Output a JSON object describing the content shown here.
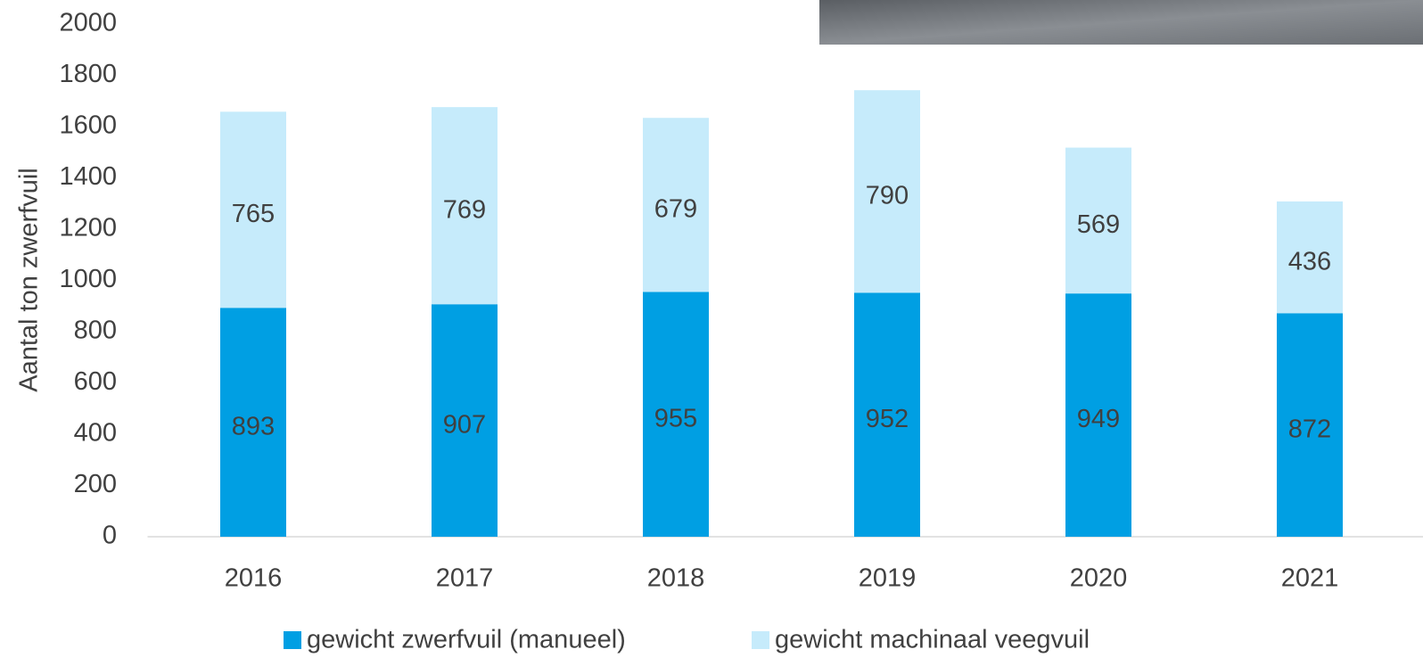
{
  "chart_data": {
    "type": "stacked_bar",
    "y_label": "Aantal ton zwerfvuil",
    "categories": [
      "2016",
      "2017",
      "2018",
      "2019",
      "2020",
      "2021"
    ],
    "series": [
      {
        "name": "gewicht zwerfvuil (manueel)",
        "color": "#009fe3",
        "values": [
          893,
          907,
          955,
          952,
          949,
          872
        ]
      },
      {
        "name": "gewicht machinaal veegvuil",
        "color": "#c6ebfb",
        "values": [
          765,
          769,
          679,
          790,
          569,
          436
        ]
      }
    ],
    "ylim": [
      0,
      2000
    ],
    "yticks": [
      0,
      200,
      400,
      600,
      800,
      1000,
      1200,
      1400,
      1600,
      1800,
      2000
    ],
    "legend": "bottom"
  }
}
